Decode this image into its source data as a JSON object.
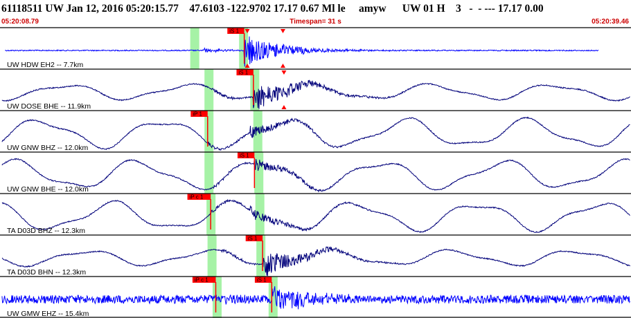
{
  "header": {
    "title": "61118511 UW Jan 12, 2016 05:20:15.77    47.6103 -122.9702 17.17 0.67 Ml le     amyw      UW 01 H    3   -  - --- 17.17 0.00",
    "start_time": "05:20:08.79",
    "timespan": "Timespan=  31 s",
    "end_time": "05:20:39.46"
  },
  "colors": {
    "waveform_blue": "#0000ff",
    "waveform_navy": "#00007a",
    "pick_window": "#a6f2a6",
    "pick_flag": "#ff0000",
    "header_red": "#cc0000"
  },
  "chart_data": {
    "type": "line",
    "x_range": [
      0,
      31
    ],
    "x_unit": "s",
    "traces": [
      {
        "label": "UW HDW EH2 -- 7.7km",
        "color": "waveform_blue",
        "style": "hf",
        "windows": [
          9.55,
          11.95
        ],
        "picks": [
          {
            "label": "iS 1",
            "x": 12.0
          }
        ],
        "triangles": [
          12.15,
          13.9
        ]
      },
      {
        "label": "UW DOSE BHE -- 11.9km",
        "color": "waveform_navy",
        "style": "mixed",
        "windows": [
          10.25,
          12.5
        ],
        "picks": [
          {
            "label": "iS 1",
            "x": 12.45
          }
        ],
        "triangles": [
          13.95
        ]
      },
      {
        "label": "UW GNW BHZ -- 12.0km",
        "color": "waveform_navy",
        "style": "lp",
        "windows": [
          10.25,
          12.65
        ],
        "picks": [
          {
            "label": "iP 1",
            "x": 10.2
          }
        ],
        "triangles": []
      },
      {
        "label": "UW GNW BHE -- 12.0km",
        "color": "waveform_navy",
        "style": "lp",
        "windows": [
          10.25,
          12.7
        ],
        "picks": [
          {
            "label": "iS 1",
            "x": 12.5
          }
        ],
        "triangles": []
      },
      {
        "label": "TA D03D BHZ -- 12.3km",
        "color": "waveform_navy",
        "style": "lp",
        "windows": [
          10.35,
          12.75
        ],
        "picks": [
          {
            "label": "iP c 1",
            "x": 10.35
          }
        ],
        "triangles": []
      },
      {
        "label": "TA D03D BHN -- 12.3km",
        "color": "waveform_navy",
        "style": "mixed",
        "windows": [
          10.4,
          12.8
        ],
        "picks": [
          {
            "label": "iS 1",
            "x": 12.9
          }
        ],
        "triangles": []
      },
      {
        "label": "UW GMW EHZ -- 15.4km",
        "color": "waveform_blue",
        "style": "noise",
        "windows": [
          10.65,
          13.4
        ],
        "picks": [
          {
            "label": "iP c 1",
            "x": 10.6
          },
          {
            "label": "iS 1",
            "x": 13.35
          }
        ],
        "triangles": []
      }
    ]
  }
}
